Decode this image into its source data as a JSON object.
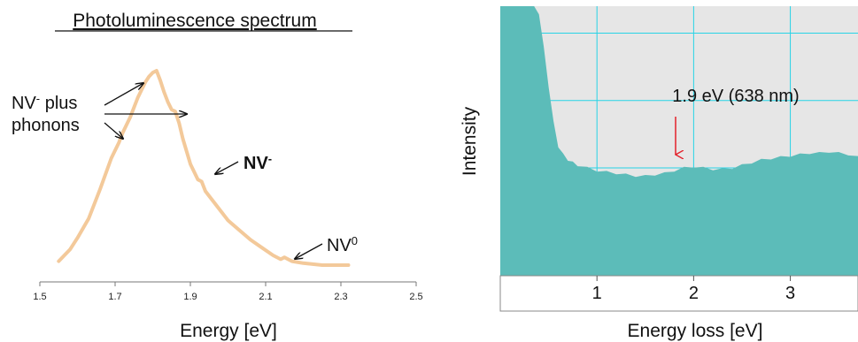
{
  "colors": {
    "pl_curve": "#f3c99a",
    "eels_fill": "#5cbcb9",
    "eels_bg": "#e6e6e6",
    "eels_grid": "#27d3e6",
    "arrow_black": "#111111",
    "arrow_red": "#e3202a"
  },
  "chart_data": [
    {
      "type": "line",
      "title": "Photoluminescence spectrum",
      "xlabel": "Energy [eV]",
      "ylabel": "",
      "xlim": [
        1.5,
        2.5
      ],
      "xticks": [
        "1.5",
        "1.7",
        "1.9",
        "2.1",
        "2.3",
        "2.5"
      ],
      "grid": false,
      "series": [
        {
          "x": [
            1.55,
            1.58,
            1.6,
            1.63,
            1.66,
            1.69,
            1.71,
            1.72,
            1.74,
            1.76,
            1.78,
            1.79,
            1.8,
            1.81,
            1.82,
            1.83,
            1.84,
            1.85,
            1.86,
            1.87,
            1.88,
            1.9,
            1.92,
            1.93,
            1.94,
            1.96,
            1.98,
            2.0,
            2.03,
            2.06,
            2.09,
            2.12,
            2.14,
            2.15,
            2.17,
            2.2,
            2.25,
            2.32
          ],
          "y": [
            0.02,
            0.08,
            0.14,
            0.24,
            0.39,
            0.55,
            0.63,
            0.68,
            0.76,
            0.86,
            0.94,
            0.97,
            0.99,
            1.0,
            0.95,
            0.89,
            0.84,
            0.8,
            0.79,
            0.73,
            0.65,
            0.52,
            0.44,
            0.43,
            0.38,
            0.33,
            0.28,
            0.23,
            0.18,
            0.13,
            0.09,
            0.05,
            0.03,
            0.04,
            0.02,
            0.01,
            0.0,
            0.0
          ]
        }
      ],
      "annotations": {
        "nv_phonons_line1": "NV",
        "nv_phonons_sup": "-",
        "nv_phonons_line2": " plus",
        "nv_phonons_line3": "phonons",
        "nv_minus": "NV",
        "nv_minus_sup": "-",
        "nv_zero": "NV",
        "nv_zero_sup": "0"
      }
    },
    {
      "type": "area",
      "title": "",
      "xlabel": "Energy loss [eV]",
      "ylabel": "Intensity",
      "xlim": [
        0,
        3.7
      ],
      "xticks": [
        "1",
        "2",
        "3"
      ],
      "grid": true,
      "series": [
        {
          "x": [
            0.35,
            0.4,
            0.45,
            0.5,
            0.55,
            0.6,
            0.65,
            0.7,
            0.75,
            0.8,
            0.9,
            1.0,
            1.1,
            1.2,
            1.3,
            1.4,
            1.5,
            1.6,
            1.7,
            1.8,
            1.9,
            2.0,
            2.1,
            2.2,
            2.3,
            2.4,
            2.5,
            2.6,
            2.7,
            2.8,
            2.9,
            3.0,
            3.1,
            3.2,
            3.3,
            3.4,
            3.5,
            3.6,
            3.7
          ],
          "y": [
            1.0,
            0.97,
            0.85,
            0.7,
            0.57,
            0.48,
            0.45,
            0.43,
            0.42,
            0.41,
            0.4,
            0.39,
            0.385,
            0.38,
            0.375,
            0.37,
            0.37,
            0.375,
            0.38,
            0.39,
            0.4,
            0.405,
            0.4,
            0.395,
            0.395,
            0.4,
            0.41,
            0.42,
            0.43,
            0.435,
            0.44,
            0.445,
            0.45,
            0.455,
            0.455,
            0.46,
            0.455,
            0.45,
            0.44
          ]
        }
      ],
      "annotations": {
        "peak_label": "1.9 eV (638 nm)"
      }
    }
  ]
}
